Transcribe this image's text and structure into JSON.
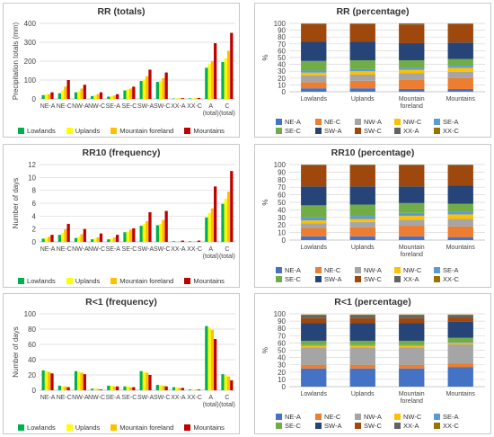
{
  "region_colors": [
    "#00b050",
    "#ffff00",
    "#ffc000",
    "#c00000"
  ],
  "regions": [
    "Lowlands",
    "Uplands",
    "Mountain foreland",
    "Mountains"
  ],
  "class_colors": [
    "#4472c4",
    "#ed7d31",
    "#a5a5a5",
    "#ffc000",
    "#5b9bd5",
    "#70ad47",
    "#264478",
    "#9e480e",
    "#636363",
    "#997300"
  ],
  "classes": [
    "NE-A",
    "NE-C",
    "NW-A",
    "NW-C",
    "SE-A",
    "SE-C",
    "SW-A",
    "SW-C",
    "XX-A",
    "XX-C"
  ],
  "chart_data": [
    {
      "id": "rr-totals",
      "type": "bar",
      "title": "RR (totals)",
      "ylabel": "Precipitation totals (mm)",
      "ylim": [
        0,
        400
      ],
      "yticks": [
        0,
        100,
        200,
        300,
        400
      ],
      "categories": [
        "NE-A",
        "NE-C",
        "NW-A",
        "NW-C",
        "SE-A",
        "SE-C",
        "SW-A",
        "SW-C",
        "XX-A",
        "XX-C",
        "A (total)",
        "C (total)"
      ],
      "series": [
        {
          "name": "Lowlands",
          "values": [
            20,
            30,
            35,
            15,
            12,
            45,
            95,
            90,
            2,
            3,
            165,
            195
          ]
        },
        {
          "name": "Uplands",
          "values": [
            25,
            45,
            40,
            20,
            15,
            50,
            100,
            95,
            3,
            3,
            185,
            215
          ]
        },
        {
          "name": "Mountain foreland",
          "values": [
            25,
            65,
            55,
            25,
            18,
            55,
            120,
            110,
            3,
            4,
            200,
            255
          ]
        },
        {
          "name": "Mountains",
          "values": [
            35,
            100,
            75,
            35,
            25,
            65,
            155,
            140,
            4,
            5,
            295,
            350
          ]
        }
      ]
    },
    {
      "id": "rr10-frequency",
      "type": "bar",
      "title": "RR10 (frequency)",
      "ylabel": "Number of days",
      "ylim": [
        0,
        12
      ],
      "yticks": [
        0,
        2,
        4,
        6,
        8,
        10,
        12
      ],
      "categories": [
        "NE-A",
        "NE-C",
        "NW-A",
        "NW-C",
        "SE-A",
        "SE-C",
        "SW-A",
        "SW-C",
        "XX-A",
        "XX-C",
        "A (total)",
        "C (total)"
      ],
      "series": [
        {
          "name": "Lowlands",
          "values": [
            0.5,
            1.1,
            0.6,
            0.4,
            0.4,
            1.5,
            2.5,
            2.6,
            0.1,
            0.1,
            3.8,
            5.9
          ]
        },
        {
          "name": "Uplands",
          "values": [
            0.6,
            1.4,
            0.8,
            0.5,
            0.5,
            1.6,
            2.8,
            2.8,
            0.1,
            0.1,
            4.5,
            6.7
          ]
        },
        {
          "name": "Mountain foreland",
          "values": [
            0.8,
            2.0,
            1.2,
            0.7,
            0.7,
            1.9,
            3.2,
            3.4,
            0.1,
            0.1,
            5.2,
            7.8
          ]
        },
        {
          "name": "Mountains",
          "values": [
            1.1,
            2.8,
            2.0,
            1.3,
            1.1,
            2.1,
            4.6,
            4.8,
            0.2,
            0.2,
            8.6,
            11.0
          ]
        }
      ]
    },
    {
      "id": "r1-frequency",
      "type": "bar",
      "title": "R<1 (frequency)",
      "ylabel": "Number of days",
      "ylim": [
        0,
        100
      ],
      "yticks": [
        0,
        20,
        40,
        60,
        80,
        100
      ],
      "categories": [
        "NE-A",
        "NE-C",
        "NW-A",
        "NW-C",
        "SE-A",
        "SE-C",
        "SW-A",
        "SW-C",
        "XX-A",
        "XX-C",
        "A (total)",
        "C (total)"
      ],
      "series": [
        {
          "name": "Lowlands",
          "values": [
            26,
            6,
            25,
            2,
            6,
            5,
            25,
            7,
            4,
            1,
            84,
            21
          ]
        },
        {
          "name": "Uplands",
          "values": [
            25,
            5,
            24,
            2,
            6,
            5,
            24,
            7,
            4,
            1,
            82,
            20
          ]
        },
        {
          "name": "Mountain foreland",
          "values": [
            24,
            5,
            23,
            2,
            5,
            4,
            23,
            6,
            3,
            1,
            79,
            18
          ]
        },
        {
          "name": "Mountains",
          "values": [
            22,
            4,
            21,
            1,
            5,
            4,
            20,
            5,
            3,
            1,
            67,
            13
          ]
        }
      ]
    },
    {
      "id": "rr-percentage",
      "type": "bar",
      "stacked": true,
      "title": "RR (percentage)",
      "ylabel": "%",
      "ylim": [
        0,
        100
      ],
      "yticks": [
        0,
        10,
        20,
        30,
        40,
        50,
        60,
        70,
        80,
        90,
        100
      ],
      "categories": [
        "Lowlands",
        "Uplands",
        "Mountain foreland",
        "Mountains"
      ],
      "series": [
        {
          "name": "NE-A",
          "values": [
            5,
            5,
            4,
            4
          ]
        },
        {
          "name": "NE-C",
          "values": [
            9,
            11,
            14,
            16
          ]
        },
        {
          "name": "NW-A",
          "values": [
            10,
            9,
            9,
            9
          ]
        },
        {
          "name": "NW-C",
          "values": [
            4,
            5,
            5,
            6
          ]
        },
        {
          "name": "SE-A",
          "values": [
            3,
            3,
            3,
            3
          ]
        },
        {
          "name": "SE-C",
          "values": [
            14,
            13,
            11,
            10
          ]
        },
        {
          "name": "SW-A",
          "values": [
            28,
            27,
            25,
            24
          ]
        },
        {
          "name": "SW-C",
          "values": [
            26,
            26,
            27,
            27
          ]
        },
        {
          "name": "XX-A",
          "values": [
            0.5,
            0.5,
            0.5,
            0.5
          ]
        },
        {
          "name": "XX-C",
          "values": [
            0.5,
            0.5,
            1.5,
            0.5
          ]
        }
      ]
    },
    {
      "id": "rr10-percentage",
      "type": "bar",
      "stacked": true,
      "title": "RR10 (percentage)",
      "ylabel": "%",
      "ylim": [
        0,
        100
      ],
      "yticks": [
        0,
        10,
        20,
        30,
        40,
        50,
        60,
        70,
        80,
        90,
        100
      ],
      "categories": [
        "Lowlands",
        "Uplands",
        "Mountain foreland",
        "Mountains"
      ],
      "series": [
        {
          "name": "NE-A",
          "values": [
            5,
            5,
            5,
            4
          ]
        },
        {
          "name": "NE-C",
          "values": [
            11,
            12,
            14,
            14
          ]
        },
        {
          "name": "NW-A",
          "values": [
            6,
            7,
            8,
            10
          ]
        },
        {
          "name": "NW-C",
          "values": [
            4,
            4,
            5,
            6
          ]
        },
        {
          "name": "SE-A",
          "values": [
            4,
            4,
            4,
            4
          ]
        },
        {
          "name": "SE-C",
          "values": [
            16,
            15,
            13,
            10
          ]
        },
        {
          "name": "SW-A",
          "values": [
            25,
            24,
            22,
            24
          ]
        },
        {
          "name": "SW-C",
          "values": [
            28,
            28,
            28,
            27
          ]
        },
        {
          "name": "XX-A",
          "values": [
            0.5,
            0.5,
            0.5,
            0.5
          ]
        },
        {
          "name": "XX-C",
          "values": [
            0.5,
            0.5,
            0.5,
            0.5
          ]
        }
      ]
    },
    {
      "id": "r1-percentage",
      "type": "bar",
      "stacked": true,
      "title": "R<1 (percentage)",
      "ylabel": "%",
      "ylim": [
        0,
        100
      ],
      "yticks": [
        0,
        10,
        20,
        30,
        40,
        50,
        60,
        70,
        80,
        90,
        100
      ],
      "categories": [
        "Lowlands",
        "Uplands",
        "Mountain foreland",
        "Mountains"
      ],
      "series": [
        {
          "name": "NE-A",
          "values": [
            25,
            25,
            25,
            27
          ]
        },
        {
          "name": "NE-C",
          "values": [
            5,
            5,
            5,
            5
          ]
        },
        {
          "name": "NW-A",
          "values": [
            24,
            24,
            24,
            26
          ]
        },
        {
          "name": "NW-C",
          "values": [
            2,
            2,
            2,
            2
          ]
        },
        {
          "name": "SE-A",
          "values": [
            1,
            1,
            1,
            1
          ]
        },
        {
          "name": "SE-C",
          "values": [
            6,
            6,
            6,
            6
          ]
        },
        {
          "name": "SW-A",
          "values": [
            24,
            24,
            24,
            22
          ]
        },
        {
          "name": "SW-C",
          "values": [
            7,
            7,
            7,
            6
          ]
        },
        {
          "name": "XX-A",
          "values": [
            4,
            4,
            4,
            3
          ]
        },
        {
          "name": "XX-C",
          "values": [
            1,
            1,
            1,
            1
          ]
        }
      ]
    }
  ]
}
